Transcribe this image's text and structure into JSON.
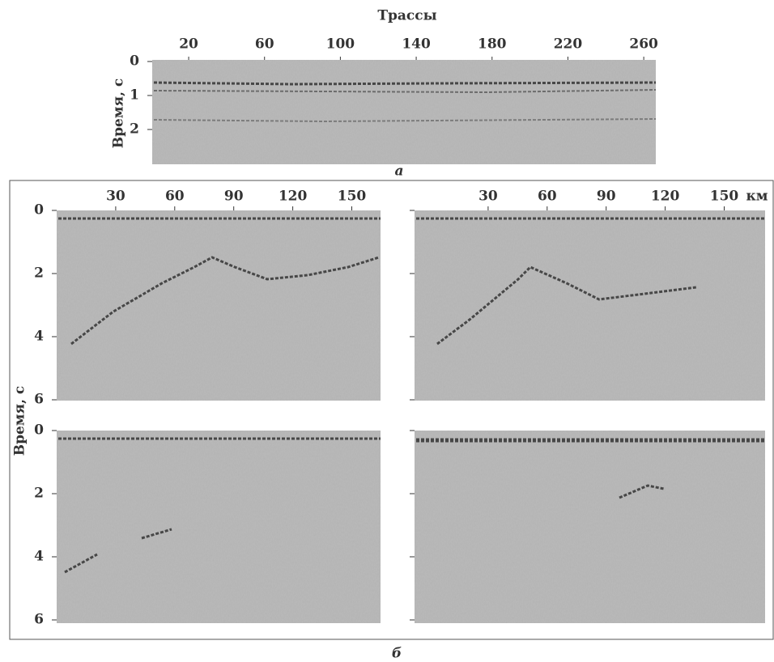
{
  "panel_a": {
    "x_label": "Трассы",
    "y_label": "Время, с",
    "xticks": [
      20,
      60,
      100,
      140,
      180,
      220,
      260
    ],
    "yticks": [
      0,
      1,
      2
    ],
    "caption": "а"
  },
  "panel_b": {
    "y_label": "Время, с",
    "xticks": [
      30,
      60,
      90,
      120,
      150
    ],
    "x_unit": "км",
    "yticks": [
      0,
      2,
      4,
      6
    ],
    "caption": "б"
  }
}
